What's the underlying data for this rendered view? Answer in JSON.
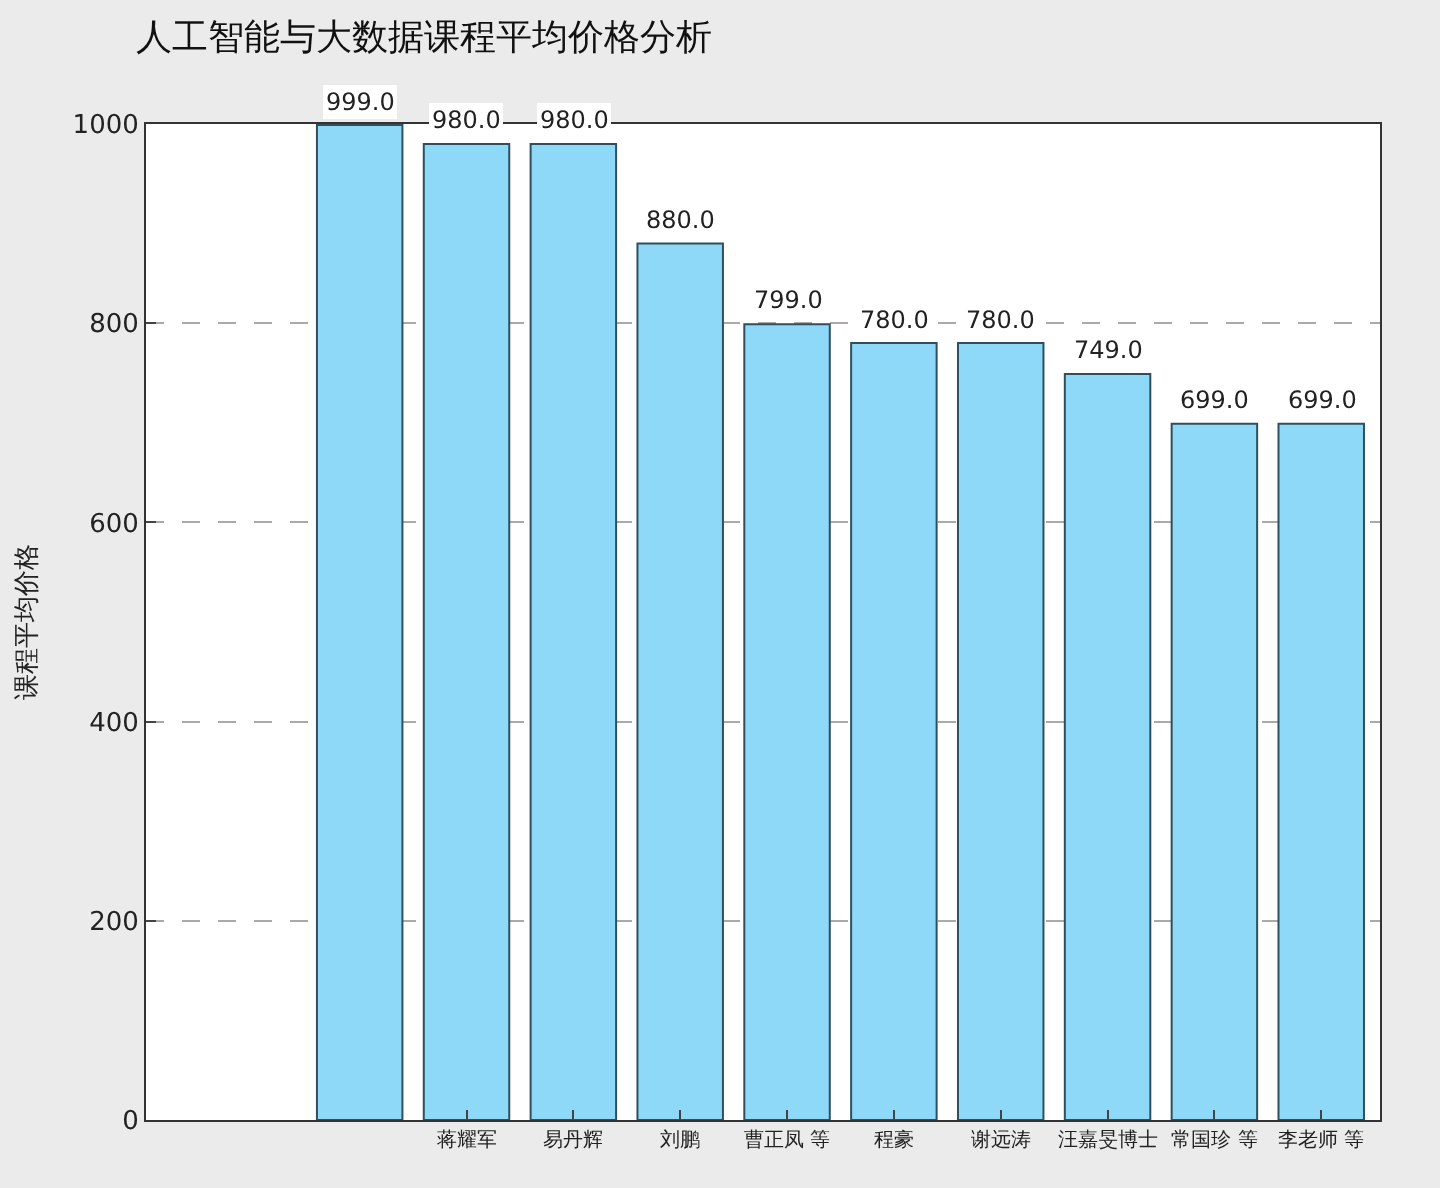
{
  "chart_data": {
    "type": "bar",
    "title": "人工智能与大数据课程平均价格分析",
    "ylabel": "课程平均价格",
    "categories": [
      null,
      "蒋耀军",
      "易丹辉",
      "刘鹏",
      "曹正凤 等",
      "程豪",
      "谢远涛",
      "汪嘉旻博士",
      "常国珍 等",
      "李老师 等"
    ],
    "values": [
      999,
      980,
      980,
      880,
      799,
      780,
      780,
      749,
      699,
      699
    ],
    "value_labels": [
      "999.0",
      "980.0",
      "980.0",
      "880.0",
      "799.0",
      "780.0",
      "780.0",
      "749.0",
      "699.0",
      "699.0"
    ],
    "color": "#8ed8f8",
    "ylim": [
      0,
      1000
    ],
    "yticks": [
      0,
      200,
      400,
      600,
      800,
      1000
    ],
    "grid": "y"
  }
}
